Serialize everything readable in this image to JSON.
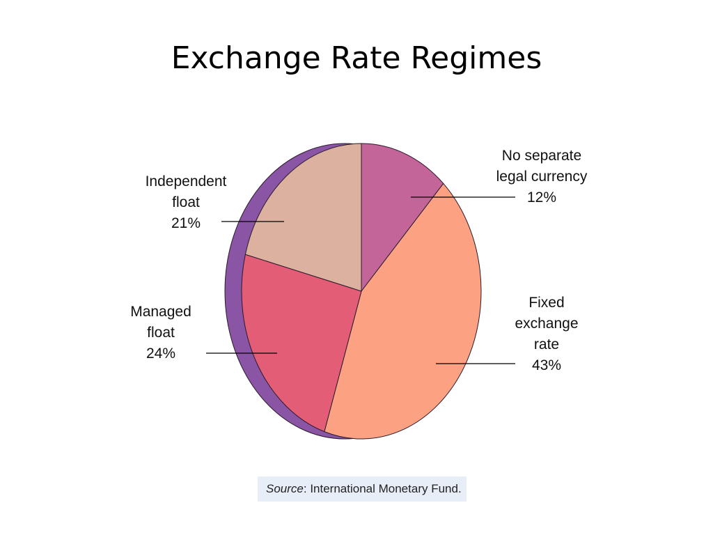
{
  "title": "Exchange Rate Regimes",
  "source": {
    "label": "Source",
    "text": ": International Monetary Fund."
  },
  "colors": {
    "rim": "#8a55a5",
    "outline": "#2a1a2a",
    "leader": "#000000"
  },
  "chart_data": {
    "type": "pie",
    "title": "Exchange Rate Regimes",
    "start_angle_deg": 0,
    "direction": "clockwise",
    "slices": [
      {
        "name": "No separate legal currency",
        "value": 12,
        "display": "12%",
        "label_lines": [
          "No separate",
          "legal currency",
          "12%"
        ],
        "color": "#c46599"
      },
      {
        "name": "Fixed exchange rate",
        "value": 43,
        "display": "43%",
        "label_lines": [
          "Fixed",
          "exchange",
          "rate",
          "43%"
        ],
        "color": "#fca283"
      },
      {
        "name": "Managed float",
        "value": 24,
        "display": "24%",
        "label_lines": [
          "Managed",
          "float",
          "24%"
        ],
        "color": "#e45d77"
      },
      {
        "name": "Independent float",
        "value": 21,
        "display": "21%",
        "label_lines": [
          "Independent",
          "float",
          "21%"
        ],
        "color": "#ddb1a0"
      }
    ]
  }
}
